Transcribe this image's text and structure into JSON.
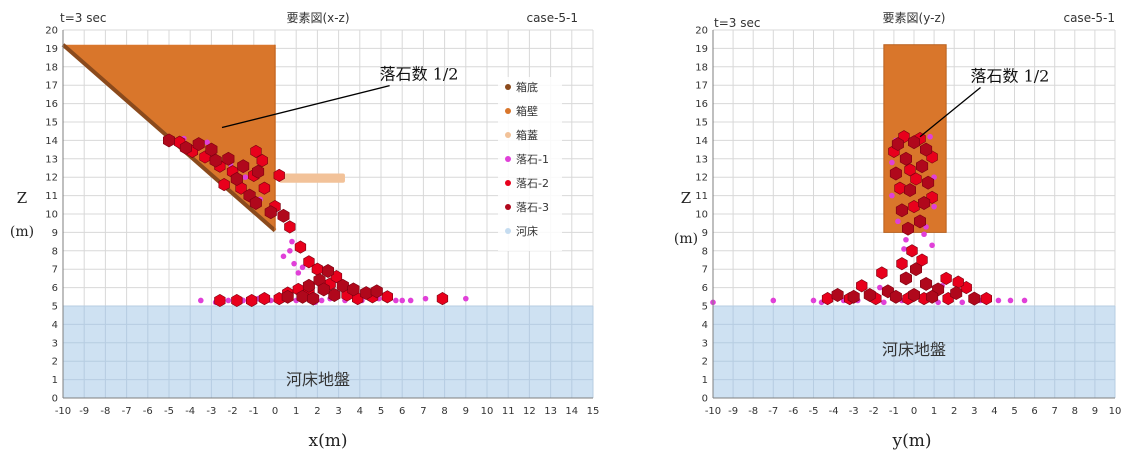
{
  "colors": {
    "grid": "#d8d8d8",
    "axis": "#7f7f7f",
    "riverbed": "#c5dcf0",
    "box_wall": "#d9762b",
    "box_floor": "#8b4a1c",
    "box_lid": "#f2c299",
    "rock1": "#e040d8",
    "rock2": "#e8001c",
    "rock3": "#b0081c",
    "text": "#333333"
  },
  "chart_data": [
    {
      "type": "scatter",
      "header_left": "t=3 sec",
      "title": "要素図(x-z)",
      "header_right": "case-5-1",
      "xlabel": "x(m)",
      "ylabel_top": "Z",
      "ylabel_bottom": "(m)",
      "xlim": [
        -10,
        15
      ],
      "ylim": [
        0,
        20
      ],
      "xticks": [
        "-10",
        "-9",
        "-8",
        "-7",
        "-6",
        "-5",
        "-4",
        "-3",
        "-2",
        "-1",
        "0",
        "1",
        "2",
        "3",
        "4",
        "5",
        "6",
        "7",
        "8",
        "9",
        "10",
        "11",
        "12",
        "13",
        "14",
        "15"
      ],
      "yticks": [
        "0",
        "1",
        "2",
        "3",
        "4",
        "5",
        "6",
        "7",
        "8",
        "9",
        "10",
        "11",
        "12",
        "13",
        "14",
        "15",
        "16",
        "17",
        "18",
        "19",
        "20"
      ],
      "grid": true,
      "legend_position": "right",
      "legend": [
        {
          "key": "floor",
          "label": "箱底"
        },
        {
          "key": "wall",
          "label": "箱壁"
        },
        {
          "key": "lid",
          "label": "箱蓋"
        },
        {
          "key": "rock1",
          "label": "落石-1"
        },
        {
          "key": "rock2",
          "label": "落石-2"
        },
        {
          "key": "rock3",
          "label": "落石-3"
        },
        {
          "key": "bed",
          "label": "河床"
        }
      ],
      "riverbed_label": "河床地盤",
      "annotation": {
        "text": "落石数 1/2",
        "at": [
          7.2,
          17.3
        ],
        "arrow_to": [
          -2.5,
          14.7
        ]
      },
      "riverbed": {
        "x": [
          -10,
          15
        ],
        "z": [
          0,
          5
        ]
      },
      "box_wall_polygon": [
        [
          -10,
          19.2
        ],
        [
          0,
          19.2
        ],
        [
          0,
          9.1
        ]
      ],
      "box_floor_line": [
        [
          -10,
          19.2
        ],
        [
          0,
          9.1
        ]
      ],
      "lid": {
        "x": [
          0.2,
          3.3
        ],
        "z": [
          11.7,
          12.2
        ]
      },
      "rocks": {
        "rock3": [
          [
            -5.0,
            14.0
          ],
          [
            -4.2,
            13.6
          ],
          [
            -3.6,
            13.8
          ],
          [
            -3.0,
            13.5
          ],
          [
            -2.2,
            13.0
          ],
          [
            -1.5,
            12.6
          ],
          [
            -0.8,
            12.3
          ],
          [
            -1.8,
            11.9
          ],
          [
            -2.8,
            12.9
          ],
          [
            -1.2,
            11.0
          ],
          [
            -0.9,
            10.6
          ],
          [
            -0.2,
            10.1
          ],
          [
            0.4,
            9.9
          ],
          [
            1.6,
            6.1
          ],
          [
            2.1,
            6.4
          ],
          [
            2.5,
            6.9
          ],
          [
            3.2,
            6.1
          ],
          [
            3.7,
            5.9
          ],
          [
            2.8,
            5.6
          ],
          [
            1.3,
            5.5
          ],
          [
            0.6,
            5.5
          ],
          [
            4.3,
            5.7
          ],
          [
            2.3,
            5.9
          ],
          [
            1.8,
            5.4
          ],
          [
            4.8,
            5.8
          ]
        ],
        "rock2": [
          [
            -4.5,
            13.9
          ],
          [
            -3.9,
            13.4
          ],
          [
            -3.3,
            13.1
          ],
          [
            -2.6,
            12.6
          ],
          [
            -2.0,
            12.3
          ],
          [
            -1.0,
            12.1
          ],
          [
            -2.4,
            11.6
          ],
          [
            -1.6,
            11.4
          ],
          [
            -0.6,
            12.9
          ],
          [
            0.2,
            12.1
          ],
          [
            -0.5,
            11.4
          ],
          [
            0.0,
            10.4
          ],
          [
            0.7,
            9.3
          ],
          [
            1.2,
            8.2
          ],
          [
            1.6,
            7.4
          ],
          [
            2.0,
            7.0
          ],
          [
            0.6,
            5.7
          ],
          [
            1.1,
            5.9
          ],
          [
            1.6,
            5.7
          ],
          [
            2.6,
            6.2
          ],
          [
            3.4,
            5.6
          ],
          [
            3.9,
            5.4
          ],
          [
            0.2,
            5.4
          ],
          [
            -0.5,
            5.4
          ],
          [
            -1.1,
            5.3
          ],
          [
            -1.8,
            5.3
          ],
          [
            -2.6,
            5.3
          ],
          [
            7.9,
            5.4
          ],
          [
            5.3,
            5.5
          ],
          [
            4.6,
            5.5
          ],
          [
            2.9,
            6.6
          ],
          [
            -0.9,
            13.4
          ]
        ],
        "rock1": [
          [
            -4.3,
            14.1
          ],
          [
            -3.2,
            13.9
          ],
          [
            -2.1,
            12.7
          ],
          [
            -1.4,
            12.0
          ],
          [
            -0.7,
            10.8
          ],
          [
            0.3,
            10.0
          ],
          [
            0.8,
            8.5
          ],
          [
            0.7,
            8.0
          ],
          [
            0.9,
            7.3
          ],
          [
            1.1,
            6.8
          ],
          [
            0.4,
            7.7
          ],
          [
            1.3,
            7.1
          ],
          [
            -3.5,
            5.3
          ],
          [
            -2.8,
            5.2
          ],
          [
            -2.2,
            5.3
          ],
          [
            -1.5,
            5.3
          ],
          [
            -0.8,
            5.4
          ],
          [
            0.4,
            5.5
          ],
          [
            1.0,
            5.3
          ],
          [
            1.9,
            5.2
          ],
          [
            2.6,
            5.4
          ],
          [
            3.3,
            5.3
          ],
          [
            4.1,
            5.3
          ],
          [
            4.9,
            5.4
          ],
          [
            5.7,
            5.3
          ],
          [
            6.4,
            5.3
          ],
          [
            7.1,
            5.4
          ],
          [
            9.0,
            5.4
          ],
          [
            6.0,
            5.3
          ],
          [
            2.2,
            5.3
          ],
          [
            -0.2,
            5.3
          ]
        ]
      }
    },
    {
      "type": "scatter",
      "header_left": "t=3 sec",
      "title": "要素図(y-z)",
      "header_right": "case-5-1",
      "xlabel": "y(m)",
      "ylabel_top": "Z",
      "ylabel_bottom": "(m)",
      "xlim": [
        -10,
        10
      ],
      "ylim": [
        0,
        20
      ],
      "xticks": [
        "-10",
        "-9",
        "-8",
        "-7",
        "-6",
        "-5",
        "-4",
        "-3",
        "-2",
        "-1",
        "0",
        "1",
        "2",
        "3",
        "4",
        "5",
        "6",
        "7",
        "8",
        "9",
        "10"
      ],
      "yticks": [
        "0",
        "1",
        "2",
        "3",
        "4",
        "5",
        "6",
        "7",
        "8",
        "9",
        "10",
        "11",
        "12",
        "13",
        "14",
        "15",
        "16",
        "17",
        "18",
        "19",
        "20"
      ],
      "grid": true,
      "riverbed_label": "河床地盤",
      "annotation": {
        "text": "落石数 1/2",
        "at": [
          5.2,
          17.2
        ],
        "arrow_to": [
          0.3,
          14.2
        ]
      },
      "riverbed": {
        "x": [
          -10,
          10
        ],
        "z": [
          0,
          5
        ]
      },
      "box_rect": {
        "x": [
          -1.5,
          1.6
        ],
        "z": [
          9.0,
          19.2
        ]
      },
      "rocks": {
        "rock3": [
          [
            -0.8,
            13.8
          ],
          [
            0.0,
            13.9
          ],
          [
            0.6,
            13.5
          ],
          [
            -0.4,
            13.0
          ],
          [
            0.4,
            12.6
          ],
          [
            -0.9,
            12.2
          ],
          [
            0.7,
            11.7
          ],
          [
            -0.2,
            11.3
          ],
          [
            0.5,
            10.6
          ],
          [
            -0.6,
            10.2
          ],
          [
            0.3,
            9.6
          ],
          [
            -0.3,
            9.2
          ],
          [
            0.1,
            7.0
          ],
          [
            -0.4,
            6.5
          ],
          [
            0.6,
            6.2
          ],
          [
            -1.3,
            5.8
          ],
          [
            1.2,
            5.9
          ],
          [
            -2.2,
            5.6
          ],
          [
            2.1,
            5.7
          ],
          [
            -3.0,
            5.5
          ],
          [
            3.0,
            5.4
          ],
          [
            -3.8,
            5.6
          ],
          [
            0.0,
            5.6
          ],
          [
            -0.9,
            5.5
          ],
          [
            0.9,
            5.5
          ]
        ],
        "rock2": [
          [
            -0.5,
            14.2
          ],
          [
            0.3,
            14.1
          ],
          [
            -1.0,
            13.4
          ],
          [
            0.9,
            13.1
          ],
          [
            -0.2,
            12.4
          ],
          [
            0.1,
            11.9
          ],
          [
            -0.7,
            11.4
          ],
          [
            0.9,
            10.9
          ],
          [
            0.0,
            10.4
          ],
          [
            -0.1,
            8.0
          ],
          [
            0.4,
            7.5
          ],
          [
            -0.6,
            7.3
          ],
          [
            -1.6,
            6.8
          ],
          [
            1.6,
            6.5
          ],
          [
            -2.6,
            6.1
          ],
          [
            2.6,
            6.0
          ],
          [
            -1.9,
            5.4
          ],
          [
            1.7,
            5.4
          ],
          [
            -3.2,
            5.4
          ],
          [
            3.6,
            5.4
          ],
          [
            -0.3,
            5.4
          ],
          [
            0.5,
            5.4
          ],
          [
            -4.3,
            5.4
          ],
          [
            2.2,
            6.3
          ]
        ],
        "rock1": [
          [
            -0.9,
            14.0
          ],
          [
            0.8,
            14.2
          ],
          [
            -1.1,
            12.8
          ],
          [
            1.0,
            12.0
          ],
          [
            -1.1,
            11.0
          ],
          [
            1.0,
            10.4
          ],
          [
            -0.8,
            9.6
          ],
          [
            0.6,
            9.3
          ],
          [
            -0.4,
            8.6
          ],
          [
            0.5,
            8.9
          ],
          [
            -0.5,
            8.1
          ],
          [
            0.9,
            8.3
          ],
          [
            -10.0,
            5.2
          ],
          [
            -7.0,
            5.3
          ],
          [
            -5.0,
            5.3
          ],
          [
            -4.6,
            5.2
          ],
          [
            -3.5,
            5.3
          ],
          [
            -2.8,
            5.3
          ],
          [
            -1.5,
            5.2
          ],
          [
            -0.6,
            5.3
          ],
          [
            1.2,
            5.2
          ],
          [
            2.4,
            5.2
          ],
          [
            3.3,
            5.3
          ],
          [
            4.2,
            5.3
          ],
          [
            4.8,
            5.3
          ],
          [
            5.5,
            5.3
          ],
          [
            -1.7,
            6.0
          ],
          [
            1.4,
            6.1
          ]
        ]
      }
    }
  ]
}
